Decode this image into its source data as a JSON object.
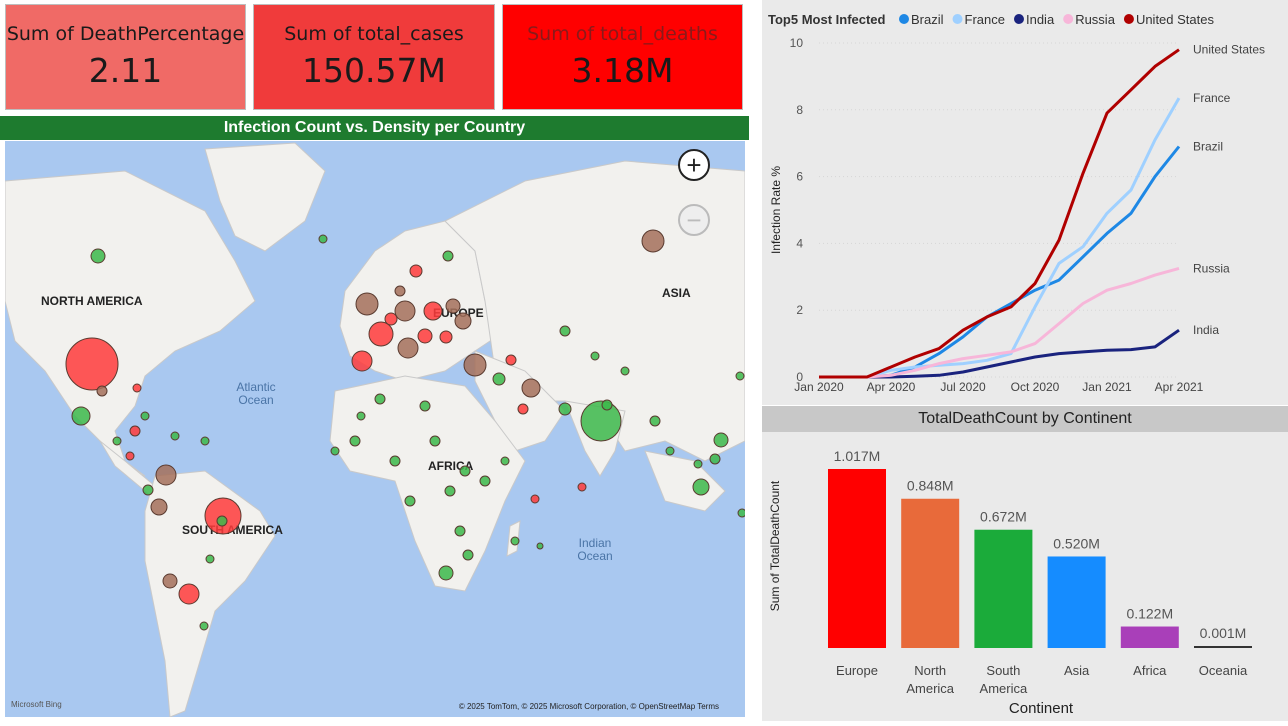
{
  "cards": [
    {
      "label": "Sum of DeathPercentage",
      "value": "2.11"
    },
    {
      "label": "Sum of total_cases",
      "value": "150.57M"
    },
    {
      "label": "Sum of total_deaths",
      "value": "3.18M"
    }
  ],
  "map": {
    "title": "Infection Count vs. Density per Country",
    "continents": [
      "NORTH AMERICA",
      "EUROPE",
      "ASIA",
      "AFRICA",
      "SOUTH AMERICA"
    ],
    "oceans": [
      "Atlantic Ocean",
      "Indian Ocean"
    ],
    "zoom_in": "+",
    "zoom_out": "−",
    "attribution_logo": "Microsoft Bing",
    "copyright": "© 2025 TomTom, © 2025 Microsoft Corporation, © OpenStreetMap  Terms",
    "colors": {
      "high": "#ff3b3b",
      "mid": "#a5705a",
      "low": "#3cb84a",
      "water": "#a9c8f0",
      "land": "#f2f1ee"
    }
  },
  "chart_data": [
    {
      "type": "line",
      "title": "Top5 Most Infected",
      "xlabel": "",
      "ylabel": "Infection Rate %",
      "x": [
        "2020-01",
        "2020-02",
        "2020-03",
        "2020-04",
        "2020-05",
        "2020-06",
        "2020-07",
        "2020-08",
        "2020-09",
        "2020-10",
        "2020-11",
        "2020-12",
        "2021-01",
        "2021-02",
        "2021-03",
        "2021-04"
      ],
      "x_ticks": [
        "Jan 2020",
        "Apr 2020",
        "Jul 2020",
        "Oct 2020",
        "Jan 2021",
        "Apr 2021"
      ],
      "ylim": [
        0,
        10
      ],
      "y_ticks": [
        0,
        2,
        4,
        6,
        8,
        10
      ],
      "legend_position": "top",
      "series": [
        {
          "name": "Brazil",
          "color": "#1e88e5",
          "values": [
            0,
            0,
            0,
            0.05,
            0.3,
            0.7,
            1.2,
            1.8,
            2.2,
            2.6,
            2.9,
            3.6,
            4.3,
            4.9,
            6.0,
            6.9
          ]
        },
        {
          "name": "France",
          "color": "#9fd0ff",
          "values": [
            0,
            0,
            0,
            0.2,
            0.3,
            0.35,
            0.4,
            0.5,
            0.7,
            2.1,
            3.4,
            3.9,
            4.9,
            5.6,
            7.1,
            8.35
          ]
        },
        {
          "name": "India",
          "color": "#1a237e",
          "values": [
            0,
            0,
            0,
            0,
            0.02,
            0.05,
            0.15,
            0.3,
            0.45,
            0.6,
            0.7,
            0.75,
            0.8,
            0.82,
            0.9,
            1.4
          ]
        },
        {
          "name": "Russia",
          "color": "#f7b6d9",
          "values": [
            0,
            0,
            0,
            0.05,
            0.2,
            0.4,
            0.55,
            0.65,
            0.75,
            1.0,
            1.6,
            2.2,
            2.6,
            2.8,
            3.05,
            3.25
          ]
        },
        {
          "name": "United States",
          "color": "#b00000",
          "values": [
            0,
            0,
            0,
            0.3,
            0.6,
            0.85,
            1.4,
            1.8,
            2.1,
            2.8,
            4.1,
            6.1,
            7.9,
            8.6,
            9.3,
            9.8
          ]
        }
      ]
    },
    {
      "type": "bar",
      "title": "TotalDeathCount by Continent",
      "xlabel": "Continent",
      "ylabel": "Sum of TotalDeathCount",
      "categories": [
        "Europe",
        "North America",
        "South America",
        "Asia",
        "Africa",
        "Oceania"
      ],
      "values": [
        1.017,
        0.848,
        0.672,
        0.52,
        0.122,
        0.001
      ],
      "data_labels": [
        "1.017M",
        "0.848M",
        "0.672M",
        "0.520M",
        "0.122M",
        "0.001M"
      ],
      "colors": [
        "#ff0000",
        "#e86a3a",
        "#1bab3a",
        "#158cff",
        "#a93fb9",
        "#333333"
      ]
    }
  ]
}
